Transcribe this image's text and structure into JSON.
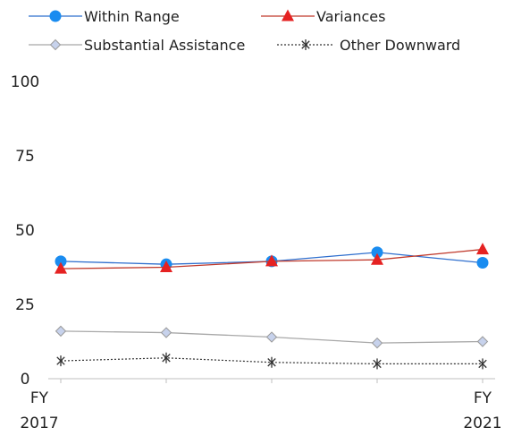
{
  "chart_data": {
    "type": "line",
    "title": "",
    "xlabel": "",
    "ylabel": "",
    "ylim": [
      0,
      100
    ],
    "y_ticks": [
      0,
      25,
      50,
      75,
      100
    ],
    "grid": false,
    "legend_position": "top",
    "categories": [
      "FY 2017",
      "",
      "",
      "",
      "FY 2021"
    ],
    "x_tick_labels": [
      {
        "line1": "FY",
        "line2": "2017"
      },
      {
        "line1": "",
        "line2": ""
      },
      {
        "line1": "",
        "line2": ""
      },
      {
        "line1": "",
        "line2": ""
      },
      {
        "line1": "FY",
        "line2": "2021"
      }
    ],
    "series": [
      {
        "name": "Within Range",
        "values": [
          39.5,
          38.5,
          39.5,
          42.5,
          39.0
        ],
        "color": "#2f6fce",
        "marker": "circle",
        "marker_color": "#1a8cf0",
        "dash": "solid"
      },
      {
        "name": "Variances",
        "values": [
          37.0,
          37.5,
          39.5,
          40.0,
          43.5
        ],
        "color": "#c0392b",
        "marker": "triangle",
        "marker_color": "#e52222",
        "dash": "solid"
      },
      {
        "name": "Substantial Assistance",
        "values": [
          16.0,
          15.5,
          14.0,
          12.0,
          12.5
        ],
        "color": "#a8a8a8",
        "marker": "diamond",
        "marker_color": "#c7d2ec",
        "dash": "solid"
      },
      {
        "name": "Other Downward",
        "values": [
          6.0,
          7.0,
          5.5,
          5.0,
          5.0
        ],
        "color": "#333333",
        "marker": "asterisk",
        "marker_color": "#333333",
        "dash": "dotted"
      }
    ]
  }
}
